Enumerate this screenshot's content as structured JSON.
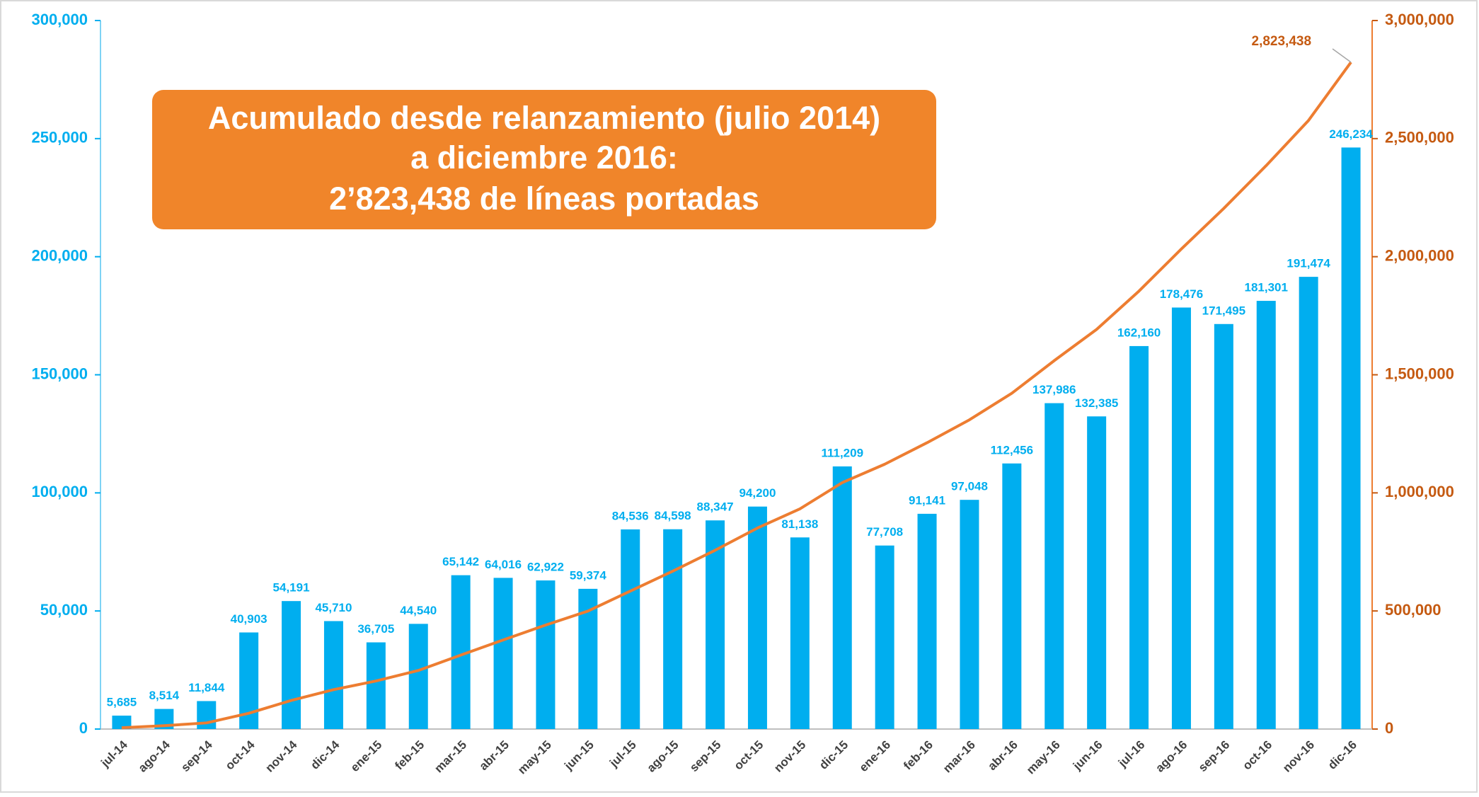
{
  "chart_data": {
    "type": "bar",
    "annotation": [
      "Acumulado desde relanzamiento (julio 2014)",
      "a diciembre 2016:",
      "2’823,438 de líneas portadas"
    ],
    "categories": [
      "jul-14",
      "ago-14",
      "sep-14",
      "oct-14",
      "nov-14",
      "dic-14",
      "ene-15",
      "feb-15",
      "mar-15",
      "abr-15",
      "may-15",
      "jun-15",
      "jul-15",
      "ago-15",
      "sep-15",
      "oct-15",
      "nov-15",
      "dic-15",
      "ene-16",
      "feb-16",
      "mar-16",
      "abr-16",
      "may-16",
      "jun-16",
      "jul-16",
      "ago-16",
      "sep-16",
      "oct-16",
      "nov-16",
      "dic-16"
    ],
    "series": [
      {
        "type": "bar",
        "color": "#00aeef",
        "values": [
          5685,
          8514,
          11844,
          40903,
          54191,
          45710,
          36705,
          44540,
          65142,
          64016,
          62922,
          59374,
          84536,
          84598,
          88347,
          94200,
          81138,
          111209,
          77708,
          91141,
          97048,
          112456,
          137986,
          132385,
          162160,
          178476,
          171495,
          181301,
          191474,
          246234
        ],
        "value_labels": [
          "5,685",
          "8,514",
          "11,844",
          "40,903",
          "54,191",
          "45,710",
          "36,705",
          "44,540",
          "65,142",
          "64,016",
          "62,922",
          "59,374",
          "84,536",
          "84,598",
          "88,347",
          "94,200",
          "81,138",
          "111,209",
          "77,708",
          "91,141",
          "97,048",
          "112,456",
          "137,986",
          "132,385",
          "162,160",
          "178,476",
          "171,495",
          "181,301",
          "191,474",
          "246,234"
        ]
      },
      {
        "type": "line",
        "axis": "y2",
        "color": "#ed7d31",
        "values": [
          5685,
          14199,
          26043,
          66946,
          121137,
          166847,
          203552,
          248092,
          313234,
          377250,
          440172,
          499546,
          584082,
          668680,
          757027,
          851227,
          932365,
          1043574,
          1121282,
          1212423,
          1309471,
          1421927,
          1559913,
          1692298,
          1854458,
          2032934,
          2204429,
          2385730,
          2577204,
          2823438
        ],
        "value_labels": [
          null,
          null,
          null,
          null,
          null,
          null,
          null,
          null,
          null,
          null,
          null,
          null,
          null,
          null,
          null,
          null,
          null,
          null,
          null,
          null,
          null,
          null,
          null,
          null,
          null,
          null,
          null,
          null,
          null,
          "2,823,438"
        ]
      }
    ],
    "ylim": [
      0,
      300000
    ],
    "yticks": [
      0,
      {
        "value": 50000,
        "label": "50,000"
      },
      {
        "value": 100000,
        "label": "100,000"
      },
      {
        "value": 150000,
        "label": "150,000"
      },
      {
        "value": 200000,
        "label": "200,000"
      },
      {
        "value": 250000,
        "label": "250,000"
      },
      {
        "value": 300000,
        "label": "300,000"
      }
    ],
    "y2lim": [
      0,
      3000000
    ],
    "y2ticks": [
      0,
      {
        "value": 500000,
        "label": "500,000"
      },
      {
        "value": 1000000,
        "label": "1,000,000"
      },
      {
        "value": 1500000,
        "label": "1,500,000"
      },
      {
        "value": 2000000,
        "label": "2,000,000"
      },
      {
        "value": 2500000,
        "label": "2,500,000"
      },
      {
        "value": 3000000,
        "label": "3,000,000"
      }
    ],
    "grid": false
  }
}
